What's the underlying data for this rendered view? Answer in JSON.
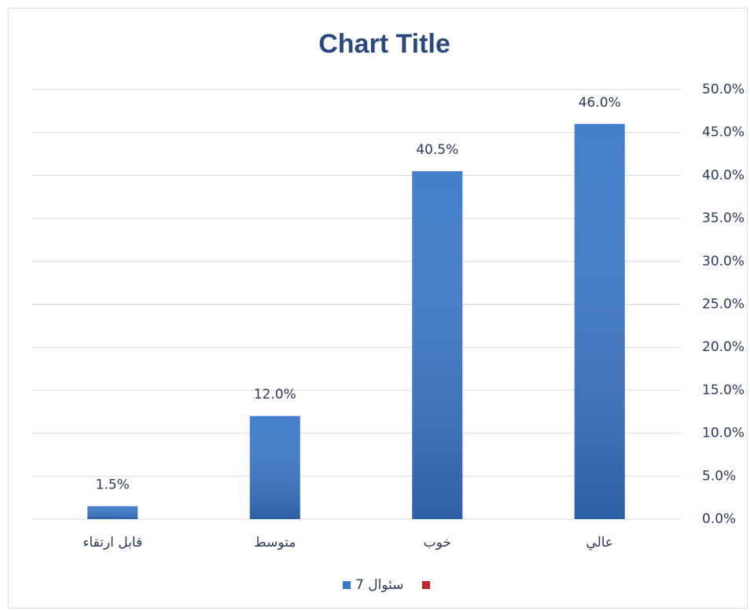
{
  "chart_data": {
    "type": "bar",
    "title": "Chart Title",
    "categories": [
      "قابل ارتقاء",
      "متوسط",
      "خوب",
      "عالي"
    ],
    "series": [
      {
        "name": "سئوال 7",
        "color": "#3a78c8",
        "values": [
          1.5,
          12.0,
          40.5,
          46.0
        ],
        "value_labels": [
          "1.5%",
          "12.0%",
          "40.5%",
          "46.0%"
        ]
      }
    ],
    "ylim": [
      0,
      50
    ],
    "yticks": [
      {
        "value": 0,
        "label": "0.0%"
      },
      {
        "value": 5,
        "label": "5.0%"
      },
      {
        "value": 10,
        "label": "10.0%"
      },
      {
        "value": 15,
        "label": "15.0%"
      },
      {
        "value": 20,
        "label": "20.0%"
      },
      {
        "value": 25,
        "label": "25.0%"
      },
      {
        "value": 30,
        "label": "30.0%"
      },
      {
        "value": 35,
        "label": "35.0%"
      },
      {
        "value": 40,
        "label": "40.0%"
      },
      {
        "value": 45,
        "label": "45.0%"
      },
      {
        "value": 50,
        "label": "50.0%"
      }
    ],
    "grid": true,
    "legend": "bottom"
  }
}
